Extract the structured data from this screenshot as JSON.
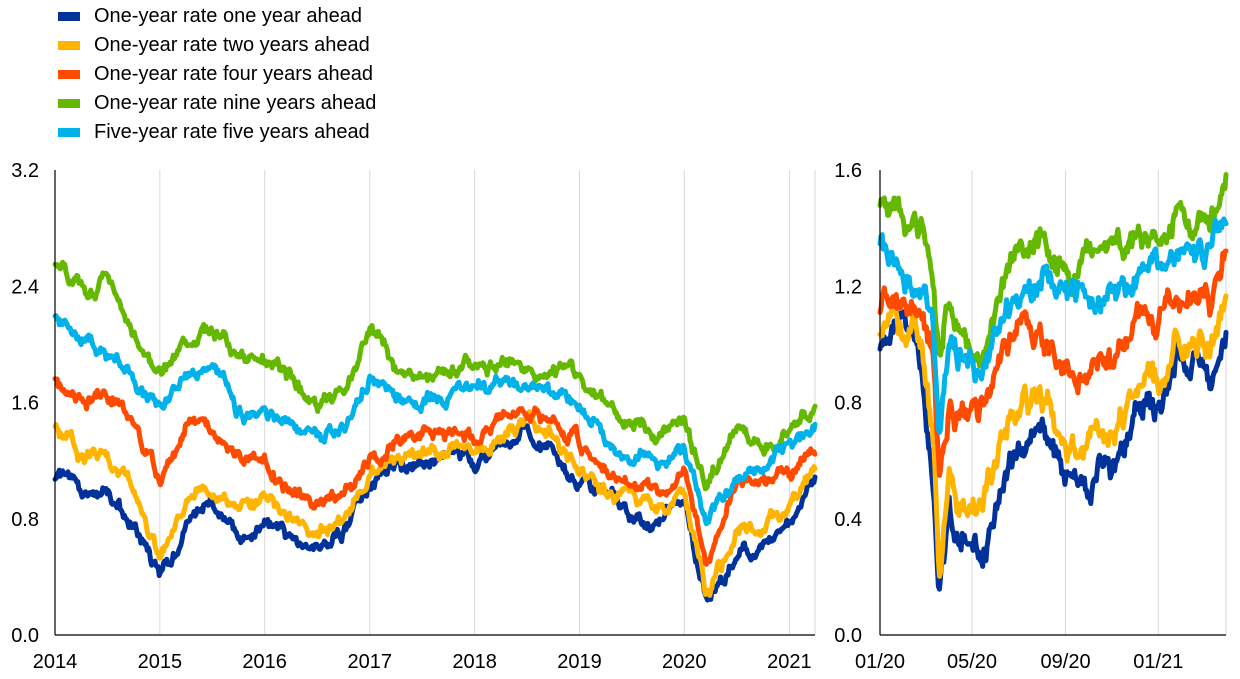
{
  "colors": {
    "series": [
      "#003299",
      "#FFB400",
      "#FF4B00",
      "#65B800",
      "#00B1EA"
    ],
    "grid": "#d9d9d9",
    "axis": "#000000"
  },
  "chart_data": [
    {
      "type": "line",
      "x_type": "date",
      "xlim": [
        "2014-01-01",
        "2021-03-31"
      ],
      "ylim": [
        0,
        3.2
      ],
      "y_ticks": [
        "0.0",
        "0.8",
        "1.6",
        "2.4",
        "3.2"
      ],
      "x_ticks": [
        {
          "date": "2014-01-01",
          "label": "2014"
        },
        {
          "date": "2015-01-01",
          "label": "2015"
        },
        {
          "date": "2016-01-01",
          "label": "2016"
        },
        {
          "date": "2017-01-01",
          "label": "2017"
        },
        {
          "date": "2018-01-01",
          "label": "2018"
        },
        {
          "date": "2019-01-01",
          "label": "2019"
        },
        {
          "date": "2020-01-01",
          "label": "2020"
        },
        {
          "date": "2021-01-01",
          "label": "2021"
        }
      ],
      "grid": "vertical",
      "x": [
        "2014-01-01",
        "2014-04-01",
        "2014-07-01",
        "2014-10-01",
        "2015-01-01",
        "2015-04-01",
        "2015-07-01",
        "2015-10-01",
        "2016-01-01",
        "2016-04-01",
        "2016-07-01",
        "2016-10-01",
        "2017-01-01",
        "2017-04-01",
        "2017-07-01",
        "2017-10-01",
        "2018-01-01",
        "2018-04-01",
        "2018-07-01",
        "2018-10-01",
        "2019-01-01",
        "2019-04-01",
        "2019-07-01",
        "2019-10-01",
        "2020-01-01",
        "2020-03-18",
        "2020-07-01",
        "2020-10-01",
        "2021-01-01",
        "2021-03-31"
      ],
      "series": [
        {
          "name": "One-year rate one year ahead",
          "values": [
            1.1,
            1.0,
            0.95,
            0.75,
            0.38,
            0.75,
            0.95,
            0.65,
            0.8,
            0.65,
            0.58,
            0.7,
            1.05,
            1.15,
            1.2,
            1.25,
            1.2,
            1.3,
            1.4,
            1.3,
            1.05,
            0.95,
            0.85,
            0.8,
            0.95,
            0.25,
            0.55,
            0.6,
            0.75,
            1.05
          ]
        },
        {
          "name": "One-year rate two years ahead",
          "values": [
            1.45,
            1.25,
            1.2,
            1.0,
            0.55,
            0.95,
            1.05,
            0.85,
            0.95,
            0.8,
            0.7,
            0.82,
            1.1,
            1.2,
            1.25,
            1.3,
            1.28,
            1.35,
            1.45,
            1.38,
            1.1,
            1.0,
            0.9,
            0.85,
            1.0,
            0.3,
            0.7,
            0.75,
            0.9,
            1.15
          ]
        },
        {
          "name": "One-year rate four years ahead",
          "values": [
            1.75,
            1.6,
            1.65,
            1.45,
            1.05,
            1.4,
            1.45,
            1.2,
            1.2,
            1.0,
            0.92,
            0.95,
            1.2,
            1.32,
            1.38,
            1.4,
            1.35,
            1.52,
            1.55,
            1.5,
            1.3,
            1.15,
            1.05,
            1.0,
            1.1,
            0.55,
            1.0,
            1.05,
            1.1,
            1.3
          ]
        },
        {
          "name": "One-year rate nine years ahead",
          "values": [
            2.55,
            2.4,
            2.4,
            2.1,
            1.8,
            2.0,
            2.1,
            1.95,
            1.9,
            1.75,
            1.58,
            1.65,
            2.1,
            1.85,
            1.75,
            1.8,
            1.88,
            1.85,
            1.85,
            1.82,
            1.75,
            1.6,
            1.45,
            1.4,
            1.45,
            1.05,
            1.4,
            1.3,
            1.4,
            1.58
          ]
        },
        {
          "name": "Five-year rate five years ahead",
          "values": [
            2.2,
            2.05,
            1.95,
            1.8,
            1.55,
            1.75,
            1.8,
            1.55,
            1.5,
            1.4,
            1.35,
            1.4,
            1.8,
            1.65,
            1.58,
            1.65,
            1.72,
            1.72,
            1.7,
            1.68,
            1.55,
            1.35,
            1.25,
            1.2,
            1.3,
            0.8,
            1.1,
            1.15,
            1.3,
            1.45
          ]
        }
      ]
    },
    {
      "type": "line",
      "x_type": "date",
      "xlim": [
        "2020-01-01",
        "2021-03-31"
      ],
      "ylim": [
        0,
        1.6
      ],
      "y_ticks": [
        "0.0",
        "0.4",
        "0.8",
        "1.2",
        "1.6"
      ],
      "x_ticks": [
        {
          "date": "2020-01-01",
          "label": "01/20"
        },
        {
          "date": "2020-05-01",
          "label": "05/20"
        },
        {
          "date": "2020-09-01",
          "label": "09/20"
        },
        {
          "date": "2021-01-01",
          "label": "01/21"
        }
      ],
      "grid": "vertical",
      "x": [
        "2020-01-01",
        "2020-01-20",
        "2020-02-10",
        "2020-02-25",
        "2020-03-10",
        "2020-03-19",
        "2020-04-01",
        "2020-04-15",
        "2020-05-01",
        "2020-05-15",
        "2020-06-01",
        "2020-06-20",
        "2020-07-10",
        "2020-08-01",
        "2020-08-20",
        "2020-09-05",
        "2020-09-25",
        "2020-10-15",
        "2020-11-05",
        "2020-11-25",
        "2020-12-15",
        "2021-01-05",
        "2021-01-25",
        "2021-02-10",
        "2021-02-25",
        "2021-03-10",
        "2021-03-31"
      ],
      "series": [
        {
          "name": "One-year rate one year ahead",
          "values": [
            1.0,
            1.05,
            1.0,
            0.95,
            0.55,
            0.15,
            0.4,
            0.3,
            0.3,
            0.3,
            0.45,
            0.6,
            0.68,
            0.7,
            0.6,
            0.55,
            0.5,
            0.6,
            0.55,
            0.7,
            0.8,
            0.78,
            0.95,
            0.95,
            1.0,
            0.85,
            1.05
          ]
        },
        {
          "name": "One-year rate two years ahead",
          "values": [
            1.05,
            1.08,
            1.05,
            1.0,
            0.7,
            0.2,
            0.6,
            0.45,
            0.45,
            0.45,
            0.55,
            0.75,
            0.82,
            0.8,
            0.7,
            0.65,
            0.6,
            0.7,
            0.7,
            0.8,
            0.88,
            0.85,
            1.0,
            1.0,
            1.05,
            0.95,
            1.14
          ]
        },
        {
          "name": "One-year rate four years ahead",
          "values": [
            1.15,
            1.12,
            1.1,
            1.05,
            0.9,
            0.5,
            0.8,
            0.78,
            0.75,
            0.75,
            0.85,
            1.0,
            1.05,
            1.0,
            0.95,
            0.92,
            0.9,
            0.95,
            0.95,
            1.05,
            1.1,
            1.1,
            1.15,
            1.15,
            1.2,
            1.1,
            1.3
          ]
        },
        {
          "name": "One-year rate nine years ahead",
          "values": [
            1.46,
            1.48,
            1.4,
            1.35,
            1.2,
            0.95,
            1.15,
            1.1,
            1.0,
            0.95,
            1.15,
            1.25,
            1.32,
            1.35,
            1.28,
            1.25,
            1.28,
            1.3,
            1.3,
            1.35,
            1.38,
            1.4,
            1.45,
            1.45,
            1.4,
            1.4,
            1.56
          ]
        },
        {
          "name": "Five-year rate five years ahead",
          "values": [
            1.33,
            1.3,
            1.25,
            1.2,
            1.05,
            0.72,
            1.0,
            0.95,
            0.9,
            0.85,
            1.05,
            1.1,
            1.15,
            1.2,
            1.18,
            1.15,
            1.12,
            1.15,
            1.15,
            1.2,
            1.25,
            1.28,
            1.3,
            1.35,
            1.32,
            1.3,
            1.44
          ]
        }
      ]
    }
  ]
}
